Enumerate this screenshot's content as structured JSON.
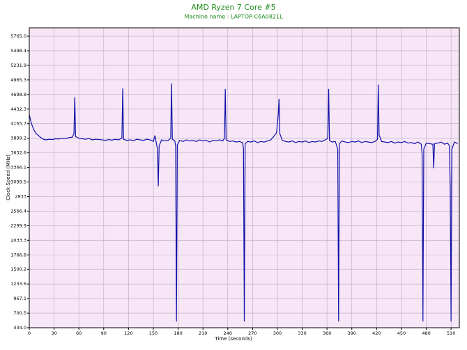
{
  "chart_data": {
    "type": "line",
    "title": "AMD Ryzen 7 Core #5",
    "subtitle": "Machine name : LAPTOP-C6A0821L",
    "x_label": "Time (seconds)",
    "y_label": "Clock Speed (MHz)",
    "color": "#1010a8",
    "background": "#f6e6f6",
    "grid": true,
    "xlim": [
      0,
      520
    ],
    "ylim": [
      434,
      5918
    ],
    "xticks": [
      0,
      30,
      60,
      90,
      120,
      150,
      180,
      210,
      240,
      270,
      300,
      330,
      360,
      390,
      420,
      450,
      480,
      510
    ],
    "yticks": [
      {
        "value": 434,
        "label": "434.0"
      },
      700.5,
      967.1,
      1233.6,
      1500.2,
      1766.8,
      2033.3,
      2299.9,
      2566.4,
      2833,
      3099.5,
      3366.1,
      3632.6,
      3899.2,
      4165.7,
      4432.3,
      4698.8,
      4965.3,
      5231.9,
      5498.4,
      {
        "value": 5765,
        "label": "5765.0"
      }
    ],
    "x": [
      0,
      2,
      4,
      6,
      8,
      11,
      14,
      17,
      20,
      24,
      28,
      32,
      36,
      40,
      44,
      48,
      52,
      54,
      55,
      56,
      60,
      64,
      68,
      72,
      76,
      80,
      84,
      88,
      92,
      96,
      100,
      104,
      108,
      112,
      113,
      114,
      118,
      122,
      126,
      130,
      134,
      138,
      142,
      146,
      150,
      152,
      153,
      155,
      156,
      157,
      160,
      164,
      168,
      171,
      172,
      173,
      176,
      177,
      178,
      179,
      182,
      186,
      190,
      194,
      198,
      202,
      206,
      210,
      214,
      218,
      222,
      226,
      230,
      234,
      236,
      237,
      238,
      242,
      246,
      250,
      254,
      258,
      259,
      260,
      261,
      264,
      268,
      272,
      276,
      280,
      284,
      288,
      292,
      296,
      299,
      301,
      302,
      303,
      306,
      310,
      314,
      318,
      322,
      326,
      330,
      334,
      338,
      342,
      346,
      350,
      354,
      358,
      361,
      362,
      363,
      366,
      370,
      373,
      374,
      375,
      378,
      382,
      386,
      390,
      394,
      398,
      402,
      406,
      410,
      414,
      418,
      421,
      422,
      423,
      426,
      430,
      434,
      438,
      442,
      446,
      450,
      454,
      458,
      462,
      466,
      470,
      474,
      475,
      476,
      477,
      480,
      484,
      488,
      489,
      490,
      494,
      498,
      502,
      506,
      508,
      509,
      510,
      511,
      514,
      518
    ],
    "values": [
      4330,
      4200,
      4110,
      4040,
      3990,
      3950,
      3910,
      3880,
      3870,
      3880,
      3875,
      3890,
      3885,
      3900,
      3895,
      3910,
      3920,
      3980,
      4650,
      3930,
      3900,
      3890,
      3880,
      3895,
      3870,
      3880,
      3875,
      3870,
      3860,
      3875,
      3865,
      3880,
      3870,
      3900,
      4810,
      3880,
      3860,
      3870,
      3855,
      3880,
      3870,
      3860,
      3880,
      3870,
      3840,
      3950,
      3860,
      3700,
      3020,
      3760,
      3870,
      3850,
      3860,
      3900,
      4900,
      3880,
      3850,
      3750,
      550,
      3780,
      3860,
      3840,
      3870,
      3850,
      3860,
      3840,
      3870,
      3850,
      3860,
      3830,
      3860,
      3850,
      3870,
      3850,
      3900,
      4800,
      3870,
      3840,
      3850,
      3830,
      3840,
      3820,
      3700,
      550,
      3800,
      3840,
      3830,
      3850,
      3820,
      3840,
      3830,
      3850,
      3870,
      3940,
      4000,
      4320,
      4620,
      3980,
      3860,
      3840,
      3830,
      3850,
      3820,
      3840,
      3830,
      3850,
      3820,
      3840,
      3830,
      3850,
      3840,
      3870,
      3900,
      4800,
      3860,
      3830,
      3840,
      3700,
      550,
      3800,
      3850,
      3830,
      3820,
      3840,
      3830,
      3850,
      3820,
      3840,
      3830,
      3820,
      3840,
      3880,
      4880,
      3960,
      3840,
      3830,
      3820,
      3840,
      3810,
      3830,
      3820,
      3840,
      3810,
      3820,
      3800,
      3830,
      3790,
      3600,
      550,
      3700,
      3810,
      3800,
      3790,
      3350,
      3800,
      3810,
      3830,
      3790,
      3810,
      3760,
      3000,
      550,
      3700,
      3830,
      3800
    ]
  }
}
